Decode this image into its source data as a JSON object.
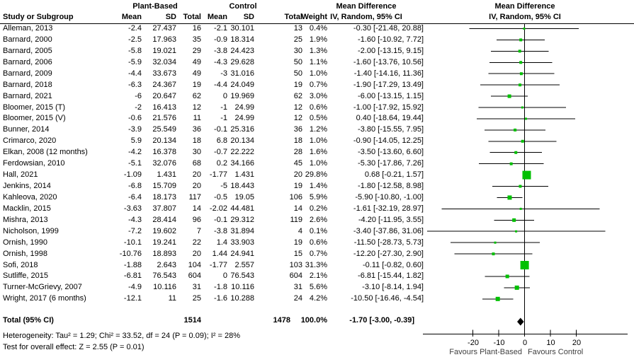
{
  "header": {
    "study_col": "Study or Subgroup",
    "group1": "Plant-Based",
    "group2": "Control",
    "mean": "Mean",
    "sd": "SD",
    "total": "Total",
    "weight": "Weight",
    "md_header_line1": "Mean Difference",
    "md_header_line2": "IV, Random, 95% CI",
    "plot_header_line1": "Mean Difference",
    "plot_header_line2": "IV, Random, 95% CI"
  },
  "chart_data": {
    "type": "forest",
    "effect_measure": "Mean Difference IV, Random, 95% CI",
    "marker_color": "#00c000",
    "diamond_color": "#000000",
    "axis": {
      "ticks": [
        -20,
        -10,
        0,
        10,
        20
      ],
      "min": -39.5,
      "max": 39.7,
      "favours_left": "Favours Plant-Based",
      "favours_right": "Favours Control"
    },
    "studies": [
      {
        "name": "Alleman, 2013",
        "pb_mean": "-2.4",
        "pb_sd": "27.437",
        "pb_total": "16",
        "c_mean": "-2.1",
        "c_sd": "30.101",
        "c_total": "13",
        "weight": "0.4%",
        "md": "-0.30 [-21.48, 20.88]",
        "est": -0.3,
        "lo": -21.48,
        "hi": 20.88
      },
      {
        "name": "Barnard, 2000",
        "pb_mean": "-2.5",
        "pb_sd": "17.963",
        "pb_total": "35",
        "c_mean": "-0.9",
        "c_sd": "18.314",
        "c_total": "25",
        "weight": "1.9%",
        "md": "-1.60 [-10.92, 7.72]",
        "est": -1.6,
        "lo": -10.92,
        "hi": 7.72
      },
      {
        "name": "Barnard, 2005",
        "pb_mean": "-5.8",
        "pb_sd": "19.021",
        "pb_total": "29",
        "c_mean": "-3.8",
        "c_sd": "24.423",
        "c_total": "30",
        "weight": "1.3%",
        "md": "-2.00 [-13.15, 9.15]",
        "est": -2.0,
        "lo": -13.15,
        "hi": 9.15
      },
      {
        "name": "Barnard, 2006",
        "pb_mean": "-5.9",
        "pb_sd": "32.034",
        "pb_total": "49",
        "c_mean": "-4.3",
        "c_sd": "29.628",
        "c_total": "50",
        "weight": "1.1%",
        "md": "-1.60 [-13.76, 10.56]",
        "est": -1.6,
        "lo": -13.76,
        "hi": 10.56
      },
      {
        "name": "Barnard, 2009",
        "pb_mean": "-4.4",
        "pb_sd": "33.673",
        "pb_total": "49",
        "c_mean": "-3",
        "c_sd": "31.016",
        "c_total": "50",
        "weight": "1.0%",
        "md": "-1.40 [-14.16, 11.36]",
        "est": -1.4,
        "lo": -14.16,
        "hi": 11.36
      },
      {
        "name": "Barnard, 2018",
        "pb_mean": "-6.3",
        "pb_sd": "24.367",
        "pb_total": "19",
        "c_mean": "-4.4",
        "c_sd": "24.049",
        "c_total": "19",
        "weight": "0.7%",
        "md": "-1.90 [-17.29, 13.49]",
        "est": -1.9,
        "lo": -17.29,
        "hi": 13.49
      },
      {
        "name": "Barnard, 2021",
        "pb_mean": "-6",
        "pb_sd": "20.647",
        "pb_total": "62",
        "c_mean": "0",
        "c_sd": "19.969",
        "c_total": "62",
        "weight": "3.0%",
        "md": "-6.00 [-13.15, 1.15]",
        "est": -6.0,
        "lo": -13.15,
        "hi": 1.15
      },
      {
        "name": "Bloomer, 2015 (T)",
        "pb_mean": "-2",
        "pb_sd": "16.413",
        "pb_total": "12",
        "c_mean": "-1",
        "c_sd": "24.99",
        "c_total": "12",
        "weight": "0.6%",
        "md": "-1.00 [-17.92, 15.92]",
        "est": -1.0,
        "lo": -17.92,
        "hi": 15.92
      },
      {
        "name": "Bloomer, 2015 (V)",
        "pb_mean": "-0.6",
        "pb_sd": "21.576",
        "pb_total": "11",
        "c_mean": "-1",
        "c_sd": "24.99",
        "c_total": "12",
        "weight": "0.5%",
        "md": "0.40 [-18.64, 19.44]",
        "est": 0.4,
        "lo": -18.64,
        "hi": 19.44
      },
      {
        "name": "Bunner, 2014",
        "pb_mean": "-3.9",
        "pb_sd": "25.549",
        "pb_total": "36",
        "c_mean": "-0.1",
        "c_sd": "25.316",
        "c_total": "36",
        "weight": "1.2%",
        "md": "-3.80 [-15.55, 7.95]",
        "est": -3.8,
        "lo": -15.55,
        "hi": 7.95
      },
      {
        "name": "Crimarco, 2020",
        "pb_mean": "5.9",
        "pb_sd": "20.134",
        "pb_total": "18",
        "c_mean": "6.8",
        "c_sd": "20.134",
        "c_total": "18",
        "weight": "1.0%",
        "md": "-0.90 [-14.05, 12.25]",
        "est": -0.9,
        "lo": -14.05,
        "hi": 12.25
      },
      {
        "name": "Elkan, 2008 (12 months)",
        "pb_mean": "-4.2",
        "pb_sd": "16.378",
        "pb_total": "30",
        "c_mean": "-0.7",
        "c_sd": "22.222",
        "c_total": "28",
        "weight": "1.6%",
        "md": "-3.50 [-13.60, 6.60]",
        "est": -3.5,
        "lo": -13.6,
        "hi": 6.6
      },
      {
        "name": "Ferdowsian, 2010",
        "pb_mean": "-5.1",
        "pb_sd": "32.076",
        "pb_total": "68",
        "c_mean": "0.2",
        "c_sd": "34.166",
        "c_total": "45",
        "weight": "1.0%",
        "md": "-5.30 [-17.86, 7.26]",
        "est": -5.3,
        "lo": -17.86,
        "hi": 7.26
      },
      {
        "name": "Hall, 2021",
        "pb_mean": "-1.09",
        "pb_sd": "1.431",
        "pb_total": "20",
        "c_mean": "-1.77",
        "c_sd": "1.431",
        "c_total": "20",
        "weight": "29.8%",
        "md": "0.68 [-0.21, 1.57]",
        "est": 0.68,
        "lo": -0.21,
        "hi": 1.57
      },
      {
        "name": "Jenkins, 2014",
        "pb_mean": "-6.8",
        "pb_sd": "15.709",
        "pb_total": "20",
        "c_mean": "-5",
        "c_sd": "18.443",
        "c_total": "19",
        "weight": "1.4%",
        "md": "-1.80 [-12.58, 8.98]",
        "est": -1.8,
        "lo": -12.58,
        "hi": 8.98
      },
      {
        "name": "Kahleova, 2020",
        "pb_mean": "-6.4",
        "pb_sd": "18.173",
        "pb_total": "117",
        "c_mean": "-0.5",
        "c_sd": "19.05",
        "c_total": "106",
        "weight": "5.9%",
        "md": "-5.90 [-10.80, -1.00]",
        "est": -5.9,
        "lo": -10.8,
        "hi": -1.0
      },
      {
        "name": "Macklin, 2015",
        "pb_mean": "-3.63",
        "pb_sd": "37.807",
        "pb_total": "14",
        "c_mean": "-2.02",
        "c_sd": "44.481",
        "c_total": "14",
        "weight": "0.2%",
        "md": "-1.61 [-32.19, 28.97]",
        "est": -1.61,
        "lo": -32.19,
        "hi": 28.97
      },
      {
        "name": "Mishra, 2013",
        "pb_mean": "-4.3",
        "pb_sd": "28.414",
        "pb_total": "96",
        "c_mean": "-0.1",
        "c_sd": "29.312",
        "c_total": "119",
        "weight": "2.6%",
        "md": "-4.20 [-11.95, 3.55]",
        "est": -4.2,
        "lo": -11.95,
        "hi": 3.55
      },
      {
        "name": "Nicholson, 1999",
        "pb_mean": "-7.2",
        "pb_sd": "19.602",
        "pb_total": "7",
        "c_mean": "-3.8",
        "c_sd": "31.894",
        "c_total": "4",
        "weight": "0.1%",
        "md": "-3.40 [-37.86, 31.06]",
        "est": -3.4,
        "lo": -37.86,
        "hi": 31.06
      },
      {
        "name": "Ornish, 1990",
        "pb_mean": "-10.1",
        "pb_sd": "19.241",
        "pb_total": "22",
        "c_mean": "1.4",
        "c_sd": "33.903",
        "c_total": "19",
        "weight": "0.6%",
        "md": "-11.50 [-28.73, 5.73]",
        "est": -11.5,
        "lo": -28.73,
        "hi": 5.73
      },
      {
        "name": "Ornish, 1998",
        "pb_mean": "-10.76",
        "pb_sd": "18.893",
        "pb_total": "20",
        "c_mean": "1.44",
        "c_sd": "24.941",
        "c_total": "15",
        "weight": "0.7%",
        "md": "-12.20 [-27.30, 2.90]",
        "est": -12.2,
        "lo": -27.3,
        "hi": 2.9
      },
      {
        "name": "Sofi, 2018",
        "pb_mean": "-1.88",
        "pb_sd": "2.643",
        "pb_total": "104",
        "c_mean": "-1.77",
        "c_sd": "2.557",
        "c_total": "103",
        "weight": "31.3%",
        "md": "-0.11 [-0.82, 0.60]",
        "est": -0.11,
        "lo": -0.82,
        "hi": 0.6
      },
      {
        "name": "Sutliffe, 2015",
        "pb_mean": "-6.81",
        "pb_sd": "76.543",
        "pb_total": "604",
        "c_mean": "0",
        "c_sd": "76.543",
        "c_total": "604",
        "weight": "2.1%",
        "md": "-6.81 [-15.44, 1.82]",
        "est": -6.81,
        "lo": -15.44,
        "hi": 1.82
      },
      {
        "name": "Turner-McGrievy, 2007",
        "pb_mean": "-4.9",
        "pb_sd": "10.116",
        "pb_total": "31",
        "c_mean": "-1.8",
        "c_sd": "10.116",
        "c_total": "31",
        "weight": "5.6%",
        "md": "-3.10 [-8.14, 1.94]",
        "est": -3.1,
        "lo": -8.14,
        "hi": 1.94
      },
      {
        "name": "Wright, 2017 (6 months)",
        "pb_mean": "-12.1",
        "pb_sd": "11",
        "pb_total": "25",
        "c_mean": "-1.6",
        "c_sd": "10.288",
        "c_total": "24",
        "weight": "4.2%",
        "md": "-10.50 [-16.46, -4.54]",
        "est": -10.5,
        "lo": -16.46,
        "hi": -4.54
      }
    ],
    "total": {
      "label": "Total (95% CI)",
      "pb_total": "1514",
      "c_total": "1478",
      "weight": "100.0%",
      "md": "-1.70 [-3.00, -0.39]",
      "est": -1.7,
      "lo": -3.0,
      "hi": -0.39
    }
  },
  "footer": {
    "heterogeneity": "Heterogeneity: Tau² = 1.29; Chi² = 33.52, df = 24 (P = 0.09); I² = 28%",
    "overall_effect": "Test for overall effect: Z = 2.55 (P = 0.01)"
  }
}
